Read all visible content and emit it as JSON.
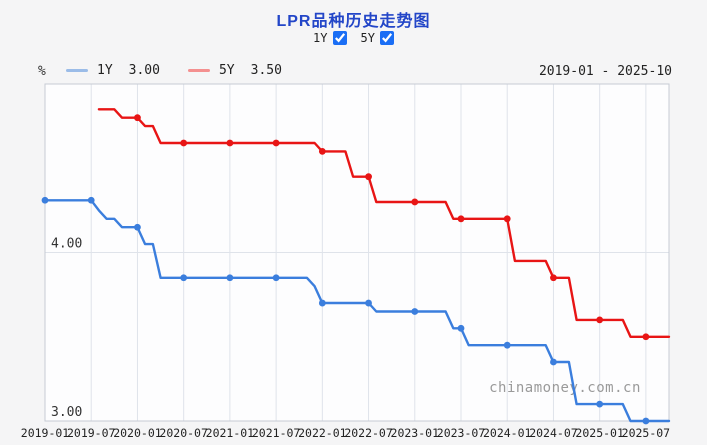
{
  "header": {
    "title": "LPR品种历史走势图",
    "date_range": "2019-01 - 2025-10"
  },
  "controls": {
    "items": [
      {
        "label": "1Y",
        "checked": true
      },
      {
        "label": "5Y",
        "checked": true
      }
    ]
  },
  "legend": {
    "unit": "%",
    "items": [
      {
        "label": "1Y",
        "value": "3.00",
        "swatch_color": "#9bbce8"
      },
      {
        "label": "5Y",
        "value": "3.50",
        "swatch_color": "#f49090"
      }
    ]
  },
  "watermark": "chinamoney.com.cn",
  "colors": {
    "title": "#2346c8",
    "line_1y": "#3b7edd",
    "line_5y": "#e81515",
    "grid": "#dfe3ea",
    "plot_border": "#c6cbd4",
    "plot_bg": "#fdfdfe",
    "axis_text": "#333333",
    "watermark": "#9a9a9a"
  },
  "chart_data": {
    "type": "line",
    "title": "LPR品种历史走势图",
    "ylabel": "%",
    "ylim": [
      3.0,
      5.0
    ],
    "ytick_values": [
      4.0,
      3.0
    ],
    "ytick_labels": [
      "4.00",
      "3.00"
    ],
    "xtick_labels": [
      "2019-01",
      "2019-07",
      "2020-01",
      "2020-07",
      "2021-01",
      "2021-07",
      "2022-01",
      "2022-07",
      "2023-01",
      "2023-07",
      "2024-01",
      "2024-07",
      "2025-01",
      "2025-07"
    ],
    "x_range_label": "2019-01 - 2025-10",
    "grid": true,
    "legend_position": "top-left",
    "marker_note": "dot markers at every January and July data point",
    "x": [
      "2019-01",
      "2019-02",
      "2019-03",
      "2019-04",
      "2019-05",
      "2019-06",
      "2019-07",
      "2019-08",
      "2019-09",
      "2019-10",
      "2019-11",
      "2019-12",
      "2020-01",
      "2020-02",
      "2020-03",
      "2020-04",
      "2020-05",
      "2020-06",
      "2020-07",
      "2020-08",
      "2020-09",
      "2020-10",
      "2020-11",
      "2020-12",
      "2021-01",
      "2021-02",
      "2021-03",
      "2021-04",
      "2021-05",
      "2021-06",
      "2021-07",
      "2021-08",
      "2021-09",
      "2021-10",
      "2021-11",
      "2021-12",
      "2022-01",
      "2022-02",
      "2022-03",
      "2022-04",
      "2022-05",
      "2022-06",
      "2022-07",
      "2022-08",
      "2022-09",
      "2022-10",
      "2022-11",
      "2022-12",
      "2023-01",
      "2023-02",
      "2023-03",
      "2023-04",
      "2023-05",
      "2023-06",
      "2023-07",
      "2023-08",
      "2023-09",
      "2023-10",
      "2023-11",
      "2023-12",
      "2024-01",
      "2024-02",
      "2024-03",
      "2024-04",
      "2024-05",
      "2024-06",
      "2024-07",
      "2024-08",
      "2024-09",
      "2024-10",
      "2024-11",
      "2024-12",
      "2025-01",
      "2025-02",
      "2025-03",
      "2025-04",
      "2025-05",
      "2025-06",
      "2025-07",
      "2025-08",
      "2025-09",
      "2025-10"
    ],
    "series": [
      {
        "name": "1Y",
        "latest_value": "3.00",
        "color": "#3b7edd",
        "values": [
          4.31,
          4.31,
          4.31,
          4.31,
          4.31,
          4.31,
          4.31,
          4.25,
          4.2,
          4.2,
          4.15,
          4.15,
          4.15,
          4.05,
          4.05,
          3.85,
          3.85,
          3.85,
          3.85,
          3.85,
          3.85,
          3.85,
          3.85,
          3.85,
          3.85,
          3.85,
          3.85,
          3.85,
          3.85,
          3.85,
          3.85,
          3.85,
          3.85,
          3.85,
          3.85,
          3.8,
          3.7,
          3.7,
          3.7,
          3.7,
          3.7,
          3.7,
          3.7,
          3.65,
          3.65,
          3.65,
          3.65,
          3.65,
          3.65,
          3.65,
          3.65,
          3.65,
          3.65,
          3.55,
          3.55,
          3.45,
          3.45,
          3.45,
          3.45,
          3.45,
          3.45,
          3.45,
          3.45,
          3.45,
          3.45,
          3.45,
          3.35,
          3.35,
          3.35,
          3.1,
          3.1,
          3.1,
          3.1,
          3.1,
          3.1,
          3.1,
          3.0,
          3.0,
          3.0,
          3.0,
          3.0,
          3.0
        ]
      },
      {
        "name": "5Y",
        "latest_value": "3.50",
        "color": "#e81515",
        "values": [
          null,
          null,
          null,
          null,
          null,
          null,
          null,
          4.85,
          4.85,
          4.85,
          4.8,
          4.8,
          4.8,
          4.75,
          4.75,
          4.65,
          4.65,
          4.65,
          4.65,
          4.65,
          4.65,
          4.65,
          4.65,
          4.65,
          4.65,
          4.65,
          4.65,
          4.65,
          4.65,
          4.65,
          4.65,
          4.65,
          4.65,
          4.65,
          4.65,
          4.65,
          4.6,
          4.6,
          4.6,
          4.6,
          4.45,
          4.45,
          4.45,
          4.3,
          4.3,
          4.3,
          4.3,
          4.3,
          4.3,
          4.3,
          4.3,
          4.3,
          4.3,
          4.2,
          4.2,
          4.2,
          4.2,
          4.2,
          4.2,
          4.2,
          4.2,
          3.95,
          3.95,
          3.95,
          3.95,
          3.95,
          3.85,
          3.85,
          3.85,
          3.6,
          3.6,
          3.6,
          3.6,
          3.6,
          3.6,
          3.6,
          3.5,
          3.5,
          3.5,
          3.5,
          3.5,
          3.5
        ]
      }
    ]
  }
}
